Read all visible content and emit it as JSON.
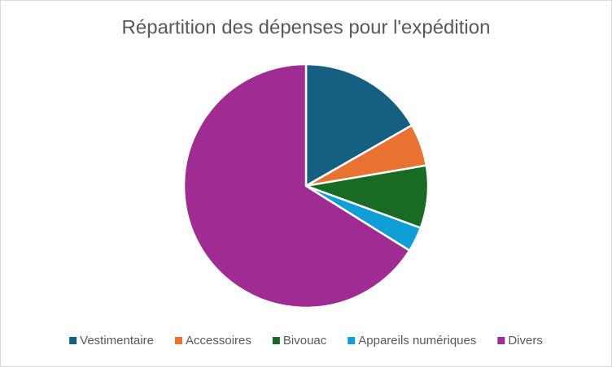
{
  "chart_data": {
    "type": "pie",
    "title": "Répartition des dépenses pour l'expédition",
    "categories": [
      "Vestimentaire",
      "Accessoires",
      "Bivouac",
      "Appareils numériques",
      "Divers"
    ],
    "values": [
      16.7,
      5.6,
      8.3,
      3.3,
      66.1
    ],
    "colors": [
      "#156082",
      "#e97132",
      "#196b24",
      "#0f9ed5",
      "#a02b93"
    ],
    "legend": "bottom"
  }
}
